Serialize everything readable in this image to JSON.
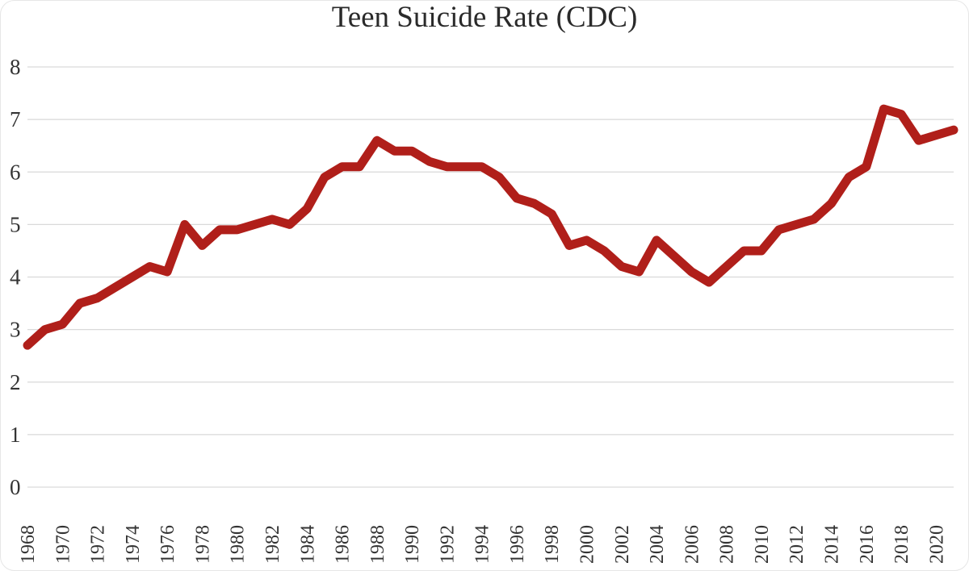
{
  "chart_data": {
    "type": "line",
    "title": "Teen Suicide Rate (CDC)",
    "xlabel": "",
    "ylabel": "",
    "ylim": [
      0,
      8
    ],
    "yticks": [
      "0",
      "1",
      "2",
      "3",
      "4",
      "5",
      "6",
      "7",
      "8"
    ],
    "xtick_labels": [
      "1968",
      "1970",
      "1972",
      "1974",
      "1976",
      "1978",
      "1980",
      "1982",
      "1984",
      "1986",
      "1988",
      "1990",
      "1992",
      "1994",
      "1996",
      "1998",
      "2000",
      "2002",
      "2004",
      "2006",
      "2008",
      "2010",
      "2012",
      "2014",
      "2016",
      "2018",
      "2020"
    ],
    "grid": true,
    "legend": "none",
    "line_color": "#b01f1a",
    "x": [
      1968,
      1969,
      1970,
      1971,
      1972,
      1973,
      1974,
      1975,
      1976,
      1977,
      1978,
      1979,
      1980,
      1981,
      1982,
      1983,
      1984,
      1985,
      1986,
      1987,
      1988,
      1989,
      1990,
      1991,
      1992,
      1993,
      1994,
      1995,
      1996,
      1997,
      1998,
      1999,
      2000,
      2001,
      2002,
      2003,
      2004,
      2005,
      2006,
      2007,
      2008,
      2009,
      2010,
      2011,
      2012,
      2013,
      2014,
      2015,
      2016,
      2017,
      2018,
      2019,
      2020,
      2021
    ],
    "series": [
      {
        "values": [
          2.7,
          3.0,
          3.1,
          3.5,
          3.6,
          3.8,
          4.0,
          4.2,
          4.1,
          5.0,
          4.6,
          4.9,
          4.9,
          5.0,
          5.1,
          5.0,
          5.3,
          5.9,
          6.1,
          6.1,
          6.6,
          6.4,
          6.4,
          6.2,
          6.1,
          6.1,
          6.1,
          5.9,
          5.5,
          5.4,
          5.2,
          4.6,
          4.7,
          4.5,
          4.2,
          4.1,
          4.7,
          4.4,
          4.1,
          3.9,
          4.2,
          4.5,
          4.5,
          4.9,
          5.0,
          5.1,
          5.4,
          5.9,
          6.1,
          7.2,
          7.1,
          6.6,
          6.7,
          6.8
        ]
      }
    ]
  }
}
